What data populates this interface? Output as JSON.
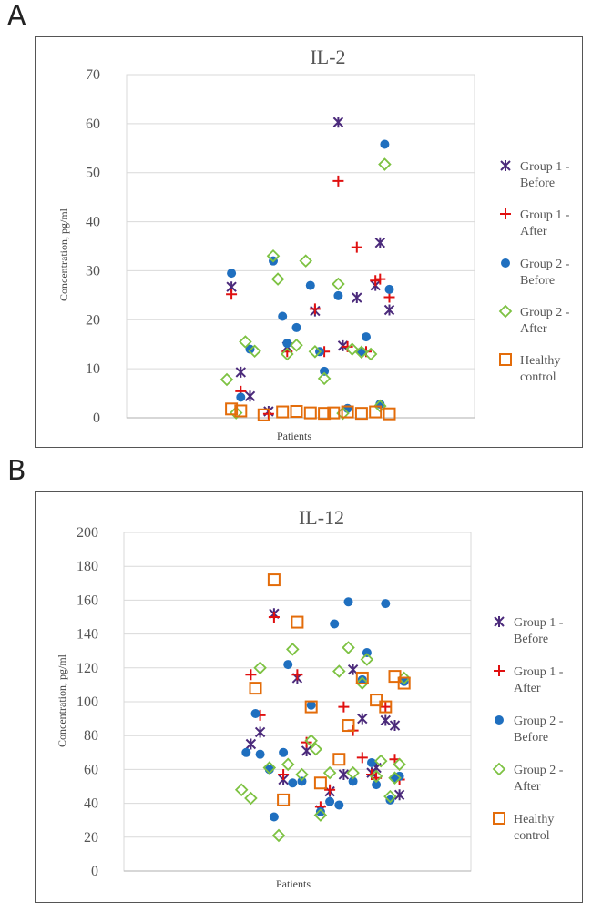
{
  "panels": [
    {
      "letter": "A"
    },
    {
      "letter": "B"
    }
  ],
  "colors": {
    "g1_before": "#4b2a7b",
    "g1_after": "#e01010",
    "g2_before": "#1f6fbf",
    "g2_after": "#7dc242",
    "healthy": "#e36c0a",
    "grid": "#d9d9d9",
    "frame": "#555555"
  },
  "chart_data": [
    {
      "type": "scatter",
      "title": "IL-2",
      "xlabel": "Patients",
      "ylabel": "Concentration, pg/ml",
      "ylim": [
        0,
        70
      ],
      "yticks": [
        0,
        10,
        20,
        30,
        40,
        50,
        60,
        70
      ],
      "legend": [
        "Group 1 -\nBefore",
        "Group 1 -\nAfter",
        "Group 2 -\nBefore",
        "Group 2 -\nAfter",
        "Healthy\ncontrol"
      ],
      "series": [
        {
          "name": "Group 1 - Before",
          "marker": "star",
          "color_key": "g1_before",
          "points": [
            [
              1,
              26.7
            ],
            [
              3,
              9.3
            ],
            [
              5,
              4.4
            ],
            [
              9,
              1.3
            ],
            [
              13,
              14.5
            ],
            [
              19,
              21.8
            ],
            [
              24,
              60.3
            ],
            [
              25,
              14.7
            ],
            [
              28,
              24.5
            ],
            [
              32,
              27
            ],
            [
              33,
              35.7
            ],
            [
              35,
              22
            ]
          ]
        },
        {
          "name": "Group 1 - After",
          "marker": "plus",
          "color_key": "g1_after",
          "points": [
            [
              1,
              25.2
            ],
            [
              3,
              5.4
            ],
            [
              9,
              0.8
            ],
            [
              13,
              13.5
            ],
            [
              19,
              22.2
            ],
            [
              21,
              13.5
            ],
            [
              24,
              48.3
            ],
            [
              26,
              14.5
            ],
            [
              28,
              34.8
            ],
            [
              30,
              13.5
            ],
            [
              32,
              28
            ],
            [
              33,
              28.3
            ],
            [
              35,
              24.6
            ]
          ]
        },
        {
          "name": "Group 2 - Before",
          "marker": "circle",
          "color_key": "g2_before",
          "points": [
            [
              1,
              29.5
            ],
            [
              3,
              4.2
            ],
            [
              5,
              14
            ],
            [
              10,
              32
            ],
            [
              12,
              20.7
            ],
            [
              13,
              15.2
            ],
            [
              15,
              18.4
            ],
            [
              18,
              27
            ],
            [
              20,
              13.5
            ],
            [
              21,
              9.5
            ],
            [
              24,
              24.9
            ],
            [
              26,
              1.9
            ],
            [
              29,
              13.5
            ],
            [
              30,
              16.5
            ],
            [
              33,
              2.8
            ],
            [
              34,
              55.8
            ],
            [
              35,
              26.2
            ]
          ]
        },
        {
          "name": "Group 2 - After",
          "marker": "diamond",
          "color_key": "g2_after",
          "points": [
            [
              0,
              7.8
            ],
            [
              2,
              1
            ],
            [
              4,
              15.5
            ],
            [
              6,
              13.6
            ],
            [
              10,
              33
            ],
            [
              11,
              28.3
            ],
            [
              13,
              13
            ],
            [
              15,
              14.8
            ],
            [
              17,
              32
            ],
            [
              19,
              13.5
            ],
            [
              21,
              8
            ],
            [
              24,
              27.3
            ],
            [
              25,
              0.9
            ],
            [
              27,
              14
            ],
            [
              29,
              13.4
            ],
            [
              31,
              13
            ],
            [
              33,
              2.4
            ],
            [
              34,
              51.7
            ]
          ]
        },
        {
          "name": "Healthy control",
          "marker": "square",
          "color_key": "healthy",
          "points": [
            [
              1,
              1.8
            ],
            [
              3,
              1.4
            ],
            [
              8,
              0.6
            ],
            [
              12,
              1.2
            ],
            [
              15,
              1.3
            ],
            [
              18,
              1
            ],
            [
              21,
              0.9
            ],
            [
              23,
              1
            ],
            [
              26,
              1.2
            ],
            [
              29,
              0.9
            ],
            [
              32,
              1.2
            ],
            [
              35,
              0.8
            ]
          ]
        }
      ]
    },
    {
      "type": "scatter",
      "title": "IL-12",
      "xlabel": "Patients",
      "ylabel": "Concentration, pg/ml",
      "ylim": [
        0,
        200
      ],
      "yticks": [
        0,
        20,
        40,
        60,
        80,
        100,
        120,
        140,
        160,
        180,
        200
      ],
      "legend": [
        "Group 1 -\nBefore",
        "Group 1 -\nAfter",
        "Group 2 -\nBefore",
        "Group 2 -\nAfter",
        "Healthy\ncontrol"
      ],
      "series": [
        {
          "name": "Group 1 - Before",
          "marker": "star",
          "color_key": "g1_before",
          "points": [
            [
              4,
              75
            ],
            [
              6,
              82
            ],
            [
              9,
              152
            ],
            [
              11,
              54
            ],
            [
              14,
              114
            ],
            [
              16,
              71
            ],
            [
              19,
              36
            ],
            [
              21,
              47
            ],
            [
              24,
              57
            ],
            [
              26,
              119
            ],
            [
              28,
              90
            ],
            [
              30,
              58
            ],
            [
              31,
              61
            ],
            [
              33,
              89
            ],
            [
              35,
              86
            ],
            [
              36,
              45
            ]
          ]
        },
        {
          "name": "Group 1 - After",
          "marker": "plus",
          "color_key": "g1_after",
          "points": [
            [
              4,
              116
            ],
            [
              6,
              92
            ],
            [
              9,
              150
            ],
            [
              11,
              57
            ],
            [
              14,
              116
            ],
            [
              16,
              76
            ],
            [
              19,
              38
            ],
            [
              21,
              48
            ],
            [
              24,
              97
            ],
            [
              26,
              83
            ],
            [
              28,
              67
            ],
            [
              30,
              57
            ],
            [
              31,
              55
            ],
            [
              33,
              97
            ],
            [
              35,
              66
            ],
            [
              36,
              54
            ]
          ]
        },
        {
          "name": "Group 2 - Before",
          "marker": "circle",
          "color_key": "g2_before",
          "points": [
            [
              3,
              70
            ],
            [
              5,
              93
            ],
            [
              6,
              69
            ],
            [
              8,
              60
            ],
            [
              9,
              32
            ],
            [
              11,
              70
            ],
            [
              12,
              122
            ],
            [
              13,
              52
            ],
            [
              15,
              53
            ],
            [
              17,
              98
            ],
            [
              19,
              35
            ],
            [
              21,
              41
            ],
            [
              22,
              146
            ],
            [
              23,
              39
            ],
            [
              25,
              159
            ],
            [
              26,
              53
            ],
            [
              28,
              113
            ],
            [
              29,
              129
            ],
            [
              30,
              64
            ],
            [
              31,
              51
            ],
            [
              33,
              158
            ],
            [
              34,
              42
            ],
            [
              35,
              55
            ],
            [
              36,
              56
            ],
            [
              37,
              112
            ]
          ]
        },
        {
          "name": "Group 2 - After",
          "marker": "diamond",
          "color_key": "g2_after",
          "points": [
            [
              2,
              48
            ],
            [
              4,
              43
            ],
            [
              6,
              120
            ],
            [
              8,
              61
            ],
            [
              10,
              21
            ],
            [
              12,
              63
            ],
            [
              13,
              131
            ],
            [
              15,
              57
            ],
            [
              17,
              77
            ],
            [
              18,
              72
            ],
            [
              19,
              33
            ],
            [
              21,
              58
            ],
            [
              23,
              118
            ],
            [
              25,
              132
            ],
            [
              26,
              58
            ],
            [
              28,
              111
            ],
            [
              29,
              125
            ],
            [
              31,
              56
            ],
            [
              32,
              65
            ],
            [
              34,
              44
            ],
            [
              35,
              55
            ],
            [
              36,
              63
            ],
            [
              37,
              114
            ]
          ]
        },
        {
          "name": "Healthy control",
          "marker": "square",
          "color_key": "healthy",
          "points": [
            [
              5,
              108
            ],
            [
              9,
              172
            ],
            [
              11,
              42
            ],
            [
              14,
              147
            ],
            [
              17,
              97
            ],
            [
              19,
              52
            ],
            [
              23,
              66
            ],
            [
              25,
              86
            ],
            [
              28,
              114
            ],
            [
              31,
              101
            ],
            [
              33,
              97
            ],
            [
              35,
              115
            ],
            [
              37,
              111
            ]
          ]
        }
      ]
    }
  ]
}
